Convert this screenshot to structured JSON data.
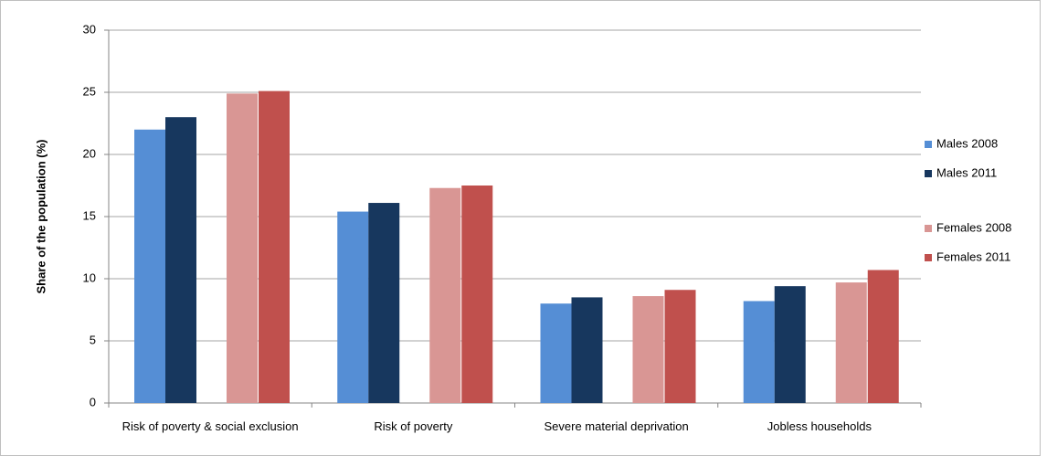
{
  "chart_data": {
    "type": "bar",
    "y_label": "Share of the population (%)",
    "categories": [
      "Risk of poverty & social exclusion",
      "Risk of poverty",
      "Severe material deprivation",
      "Jobless households"
    ],
    "series": [
      {
        "name": "Males 2008",
        "color": "#558ed5",
        "values": [
          22.0,
          15.4,
          8.0,
          8.2
        ]
      },
      {
        "name": "Males 2011",
        "color": "#17375e",
        "values": [
          23.0,
          16.1,
          8.5,
          9.4
        ]
      },
      {
        "name": "Females 2008",
        "color": "#d99694",
        "values": [
          24.9,
          17.3,
          8.6,
          9.7
        ]
      },
      {
        "name": "Females 2011",
        "color": "#c0504d",
        "values": [
          25.1,
          17.5,
          9.1,
          10.7
        ]
      }
    ],
    "ylim": [
      0,
      30
    ],
    "yticks": [
      0,
      5,
      10,
      15,
      20,
      25,
      30
    ],
    "grid": true,
    "legend": "right"
  }
}
